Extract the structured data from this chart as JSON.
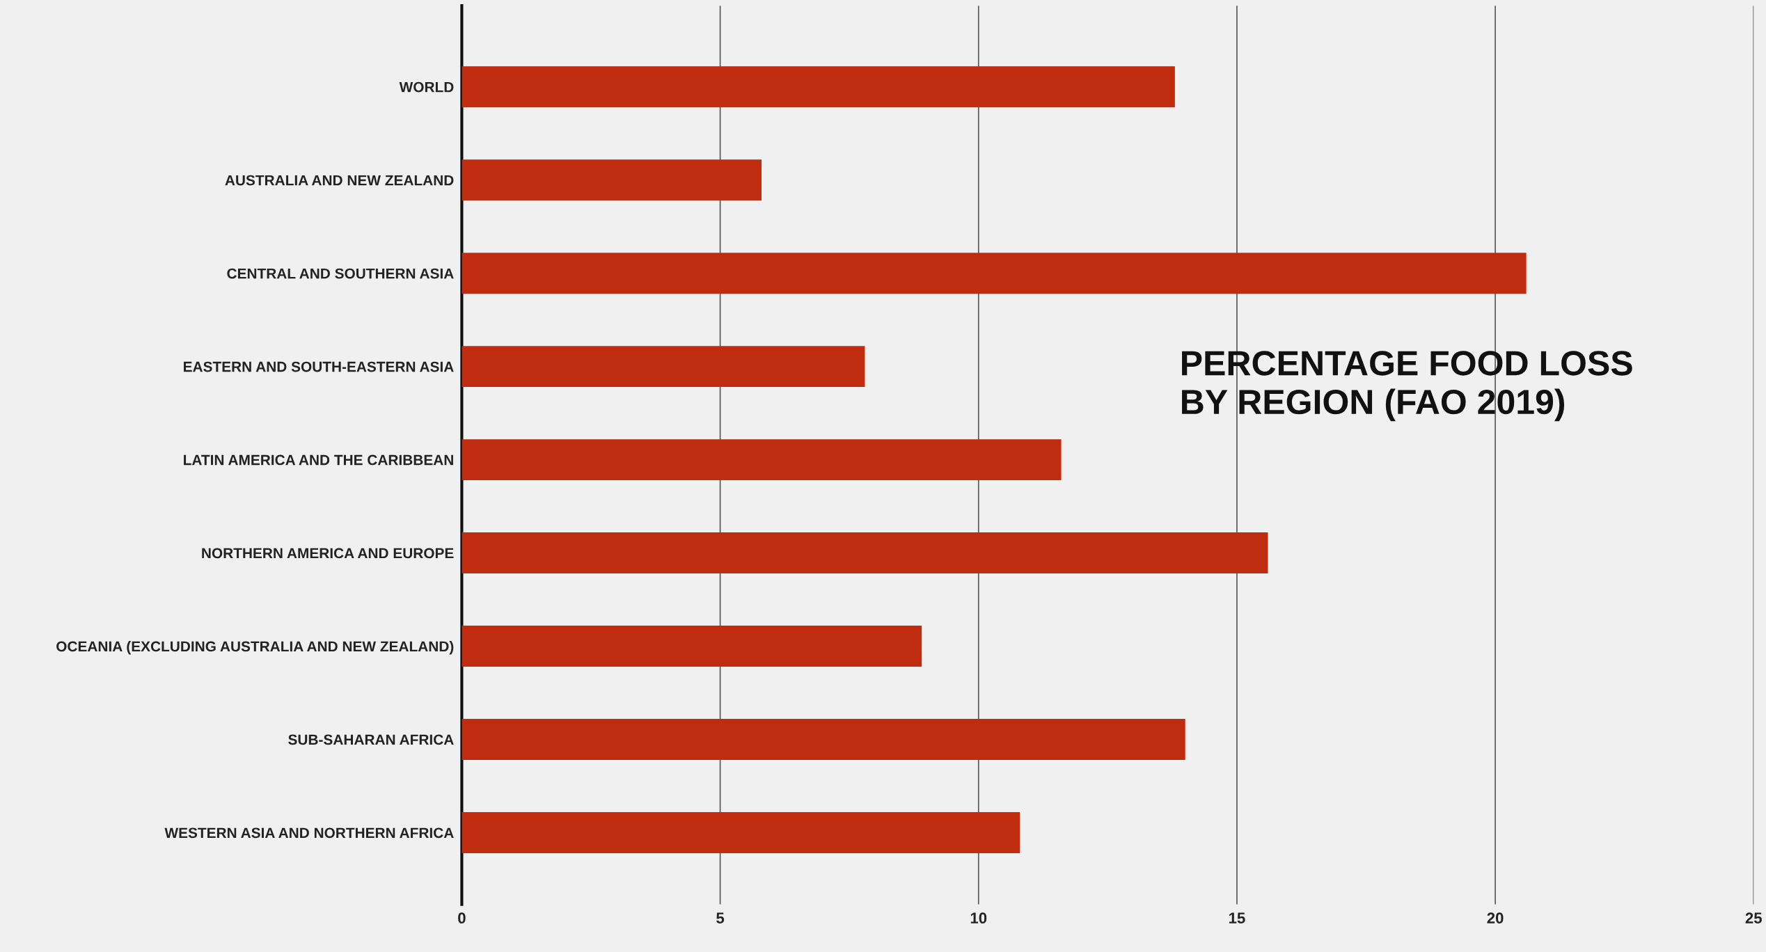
{
  "chart_data": {
    "type": "bar",
    "orientation": "horizontal",
    "title": "PERCENTAGE FOOD LOSS\nBY REGION (FAO 2019)",
    "categories": [
      "WORLD",
      "AUSTRALIA AND NEW ZEALAND",
      "CENTRAL AND SOUTHERN ASIA",
      "EASTERN AND SOUTH-EASTERN ASIA",
      "LATIN AMERICA AND THE CARIBBEAN",
      "NORTHERN AMERICA AND EUROPE",
      "OCEANIA (EXCLUDING AUSTRALIA AND NEW ZEALAND)",
      "SUB-SAHARAN AFRICA",
      "WESTERN ASIA AND NORTHERN AFRICA"
    ],
    "values": [
      13.8,
      5.8,
      20.6,
      7.8,
      11.6,
      15.6,
      8.9,
      14.0,
      10.8
    ],
    "color": "#c02c10",
    "xlim": [
      0,
      25
    ],
    "xticks": [
      0,
      5,
      10,
      15,
      20,
      25
    ],
    "grid": "x"
  }
}
